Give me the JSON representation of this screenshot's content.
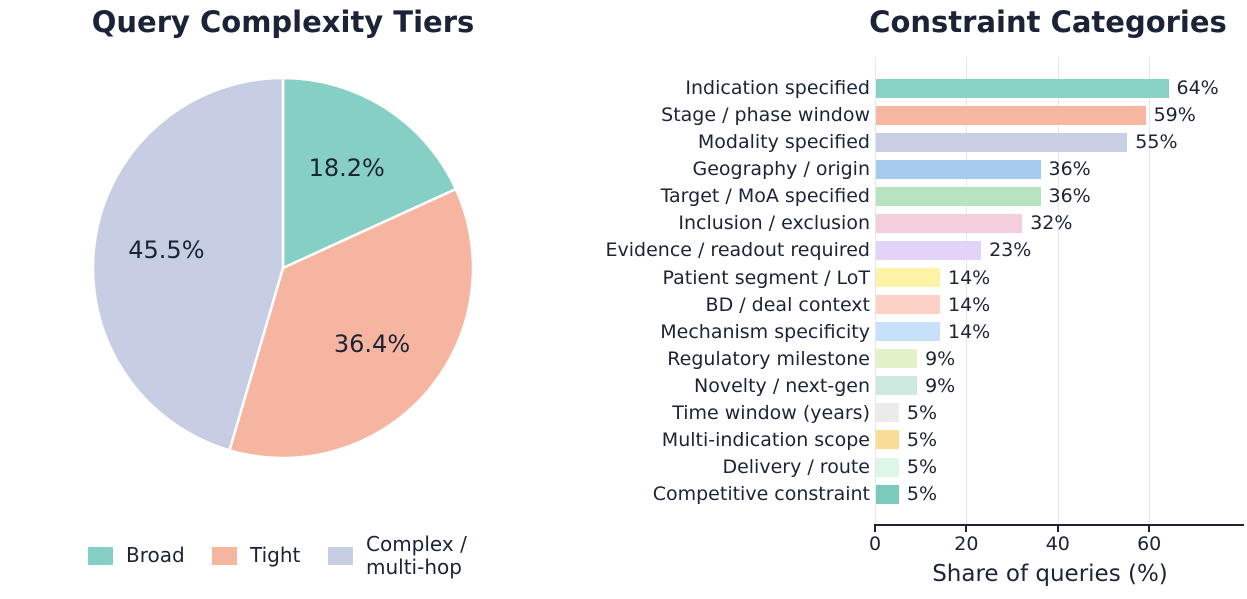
{
  "figure": {
    "background": "#ffffff",
    "text_color": "#1b2436",
    "grid_color": "#e7e7e9",
    "axis_color": "#1c2433"
  },
  "chart_data": [
    {
      "type": "pie",
      "title": "Query Complexity Tiers",
      "labels": [
        "Broad",
        "Tight",
        "Complex / multi-hop"
      ],
      "values": [
        18.2,
        36.4,
        45.5
      ],
      "pct_labels": [
        "18.2%",
        "36.4%",
        "45.5%"
      ],
      "colors": [
        "#85cfc4",
        "#f6b5a0",
        "#c7cee3"
      ],
      "start_angle": "top",
      "direction": "clockwise",
      "legend": {
        "position": "bottom",
        "items": [
          {
            "label": "Broad",
            "color": "#85cfc4"
          },
          {
            "label": "Tight",
            "color": "#f6b5a0"
          },
          {
            "label": "Complex /\nmulti-hop",
            "color": "#c7cee3"
          }
        ]
      }
    },
    {
      "type": "bar",
      "orientation": "horizontal",
      "title": "Constraint Categories",
      "xlabel": "Share of queries (%)",
      "categories": [
        "Indication specified",
        "Stage / phase window",
        "Modality specified",
        "Geography / origin",
        "Target / MoA specified",
        "Inclusion / exclusion",
        "Evidence / readout required",
        "Patient segment / LoT",
        "BD / deal context",
        "Mechanism specificity",
        "Regulatory milestone",
        "Novelty / next-gen",
        "Time window (years)",
        "Multi-indication scope",
        "Delivery / route",
        "Competitive constraint"
      ],
      "values": [
        64,
        59,
        55,
        36,
        36,
        32,
        23,
        14,
        14,
        14,
        9,
        9,
        5,
        5,
        5,
        5
      ],
      "value_labels": [
        "64%",
        "59%",
        "55%",
        "36%",
        "36%",
        "32%",
        "23%",
        "14%",
        "14%",
        "14%",
        "9%",
        "9%",
        "5%",
        "5%",
        "5%",
        "5%"
      ],
      "bar_colors": [
        "#87d1c5",
        "#f7b7a1",
        "#c8cfe4",
        "#a6c9ee",
        "#b8e3c1",
        "#f5cedd",
        "#e2d3f8",
        "#fdf3a5",
        "#fbd2c3",
        "#c8e1fa",
        "#e2f1c7",
        "#cee9df",
        "#ebebeb",
        "#f8dc98",
        "#ddf6e7",
        "#7ccabd"
      ],
      "xticks": [
        0,
        20,
        40,
        60
      ],
      "xlim": [
        0,
        80
      ],
      "grid": "vertical-light"
    }
  ]
}
